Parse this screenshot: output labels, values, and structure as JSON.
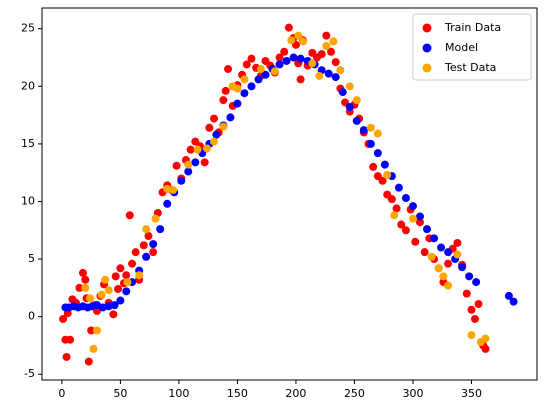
{
  "chart_data": {
    "type": "scatter",
    "xlim": [
      -17,
      406
    ],
    "ylim": [
      -5.5,
      26.8
    ],
    "xticks": [
      0,
      50,
      100,
      150,
      200,
      250,
      300,
      350
    ],
    "yticks": [
      -5,
      0,
      5,
      10,
      15,
      20,
      25
    ],
    "legend": "upper right",
    "series": [
      {
        "name": "Train Data",
        "color": "red",
        "x": [
          1,
          3,
          4,
          5,
          7,
          9,
          12,
          15,
          18,
          20,
          21,
          23,
          25,
          28,
          30,
          33,
          36,
          40,
          44,
          46,
          48,
          50,
          53,
          55,
          58,
          60,
          63,
          66,
          70,
          74,
          78,
          82,
          86,
          90,
          94,
          98,
          102,
          106,
          110,
          114,
          118,
          122,
          126,
          130,
          134,
          138,
          140,
          142,
          146,
          150,
          154,
          158,
          162,
          166,
          170,
          174,
          178,
          182,
          186,
          190,
          194,
          198,
          200,
          202,
          204,
          206,
          210,
          214,
          218,
          222,
          226,
          230,
          234,
          238,
          242,
          246,
          250,
          254,
          258,
          262,
          266,
          270,
          274,
          278,
          282,
          286,
          290,
          294,
          298,
          302,
          306,
          310,
          314,
          318,
          322,
          326,
          330,
          334,
          338,
          342,
          346,
          350,
          353,
          356,
          360,
          362
        ],
        "y": [
          -0.2,
          -2.0,
          -3.5,
          0.3,
          -2.0,
          1.5,
          1.2,
          2.5,
          3.8,
          3.2,
          1.6,
          -3.9,
          -1.2,
          1.0,
          0.5,
          1.8,
          2.8,
          1.2,
          0.2,
          3.5,
          2.4,
          4.2,
          2.9,
          3.6,
          8.8,
          4.6,
          5.6,
          3.2,
          6.2,
          7.0,
          5.6,
          9.0,
          10.8,
          11.4,
          11.0,
          13.1,
          12.0,
          13.6,
          14.5,
          15.2,
          14.8,
          13.4,
          16.4,
          17.2,
          16.0,
          18.8,
          19.6,
          21.5,
          18.3,
          20.1,
          21.0,
          21.9,
          22.4,
          21.6,
          20.9,
          22.2,
          21.8,
          21.2,
          22.5,
          23.0,
          25.1,
          24.2,
          23.6,
          22.0,
          20.6,
          24.0,
          21.8,
          22.9,
          22.5,
          22.8,
          24.4,
          23.0,
          22.1,
          19.8,
          18.6,
          17.8,
          18.4,
          17.2,
          16.0,
          15.0,
          13.0,
          12.2,
          11.8,
          10.6,
          10.2,
          9.4,
          8.0,
          7.5,
          9.3,
          6.5,
          8.2,
          5.6,
          6.8,
          5.0,
          4.2,
          3.0,
          4.6,
          5.9,
          6.4,
          4.5,
          2.0,
          0.6,
          -0.2,
          1.1,
          -2.5,
          -2.8
        ]
      },
      {
        "name": "Model",
        "color": "blue",
        "x": [
          3,
          6,
          10,
          14,
          18,
          22,
          26,
          30,
          35,
          40,
          45,
          50,
          55,
          60,
          66,
          72,
          78,
          84,
          90,
          96,
          102,
          108,
          114,
          120,
          126,
          132,
          138,
          144,
          150,
          156,
          162,
          168,
          174,
          180,
          186,
          192,
          198,
          204,
          210,
          216,
          222,
          228,
          234,
          240,
          246,
          252,
          258,
          264,
          270,
          276,
          282,
          288,
          294,
          300,
          306,
          312,
          318,
          324,
          330,
          336,
          342,
          348,
          354,
          382,
          386
        ],
        "y": [
          0.8,
          0.8,
          0.9,
          0.8,
          0.9,
          0.8,
          0.9,
          1.0,
          0.8,
          0.9,
          1.0,
          1.4,
          2.2,
          3.0,
          4.0,
          5.2,
          6.3,
          7.6,
          9.8,
          10.8,
          11.8,
          12.6,
          13.4,
          14.2,
          15.0,
          15.8,
          16.6,
          17.3,
          18.5,
          19.4,
          20.0,
          20.6,
          21.0,
          21.5,
          21.9,
          22.2,
          22.5,
          22.4,
          22.2,
          21.9,
          21.4,
          21.1,
          20.8,
          19.5,
          18.2,
          17.0,
          16.2,
          15.0,
          14.2,
          13.2,
          12.2,
          11.2,
          10.3,
          9.6,
          8.7,
          7.6,
          6.8,
          6.0,
          5.6,
          5.0,
          4.3,
          3.5,
          3.0,
          1.8,
          1.3
        ]
      },
      {
        "name": "Test Data",
        "color": "orange",
        "x": [
          20,
          24,
          27,
          30,
          34,
          37,
          40,
          56,
          66,
          72,
          80,
          90,
          95,
          108,
          116,
          124,
          130,
          138,
          146,
          150,
          156,
          170,
          182,
          196,
          202,
          206,
          214,
          220,
          226,
          232,
          238,
          246,
          252,
          264,
          270,
          278,
          284,
          300,
          316,
          322,
          326,
          330,
          338,
          350,
          358,
          362
        ],
        "y": [
          2.5,
          1.6,
          -2.8,
          -1.2,
          1.9,
          3.2,
          2.3,
          3.0,
          3.6,
          7.6,
          8.5,
          11.1,
          11.0,
          13.2,
          14.5,
          14.6,
          15.2,
          16.5,
          20.0,
          19.8,
          20.6,
          21.5,
          21.3,
          24.0,
          24.4,
          23.9,
          22.0,
          20.9,
          23.5,
          23.9,
          21.4,
          20.0,
          18.8,
          16.4,
          15.9,
          12.3,
          8.8,
          8.5,
          5.2,
          4.2,
          3.5,
          2.7,
          5.4,
          -1.6,
          -2.2,
          -1.9
        ]
      }
    ]
  }
}
